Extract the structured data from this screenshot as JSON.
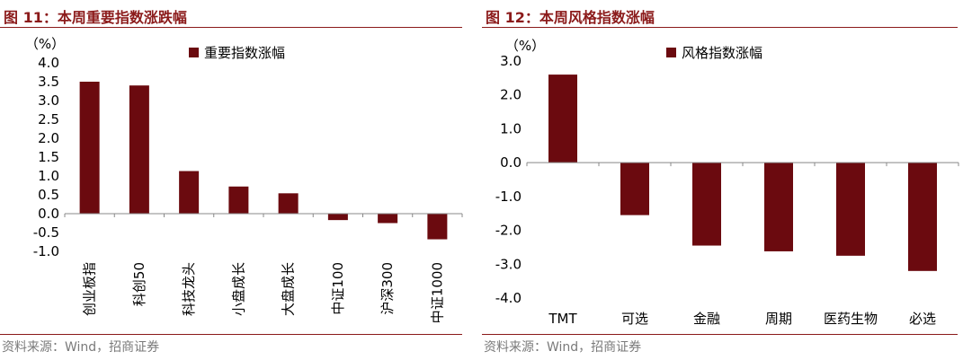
{
  "charts": [
    {
      "figure_title": "图 11：本周重要指数涨跌幅",
      "source": "资料来源：Wind，招商证券",
      "accent_color": "#8B1A1A",
      "bar_color": "#6B0A0F",
      "chart_data": {
        "type": "bar",
        "title": "",
        "ylabel": "（%）",
        "xlabel": "",
        "ylim": [
          -1.0,
          4.0
        ],
        "yticks": [
          -1.0,
          -0.5,
          0.0,
          0.5,
          1.0,
          1.5,
          2.0,
          2.5,
          3.0,
          3.5,
          4.0
        ],
        "ytick_labels": [
          "-1.0",
          "-0.5",
          "0.0",
          "0.5",
          "1.0",
          "1.5",
          "2.0",
          "2.5",
          "3.0",
          "3.5",
          "4.0"
        ],
        "categories": [
          "创业板指",
          "科创50",
          "科技龙头",
          "小盘成长",
          "大盘成长",
          "中证100",
          "沪深300",
          "中证1000"
        ],
        "series": [
          {
            "name": "重要指数涨幅",
            "values": [
              3.5,
              3.4,
              1.13,
              0.72,
              0.54,
              -0.17,
              -0.25,
              -0.68
            ]
          }
        ],
        "grid": false,
        "legend": "top",
        "category_label_rotation": "vertical"
      }
    },
    {
      "figure_title": "图 12：本周风格指数涨幅",
      "source": "资料来源：Wind，招商证券",
      "accent_color": "#8B1A1A",
      "bar_color": "#6B0A0F",
      "chart_data": {
        "type": "bar",
        "title": "",
        "ylabel": "（%）",
        "xlabel": "",
        "ylim": [
          -4.0,
          3.0
        ],
        "yticks": [
          -4.0,
          -3.0,
          -2.0,
          -1.0,
          0.0,
          1.0,
          2.0,
          3.0
        ],
        "ytick_labels": [
          "-4.0",
          "-3.0",
          "-2.0",
          "-1.0",
          "0.0",
          "1.0",
          "2.0",
          "3.0"
        ],
        "categories": [
          "TMT",
          "可选",
          "金融",
          "周期",
          "医药生物",
          "必选"
        ],
        "series": [
          {
            "name": "风格指数涨幅",
            "values": [
              2.6,
              -1.55,
              -2.45,
              -2.62,
              -2.75,
              -3.2
            ]
          }
        ],
        "grid": false,
        "legend": "top",
        "category_label_rotation": "horizontal",
        "category_label_position": "bottom"
      }
    }
  ]
}
